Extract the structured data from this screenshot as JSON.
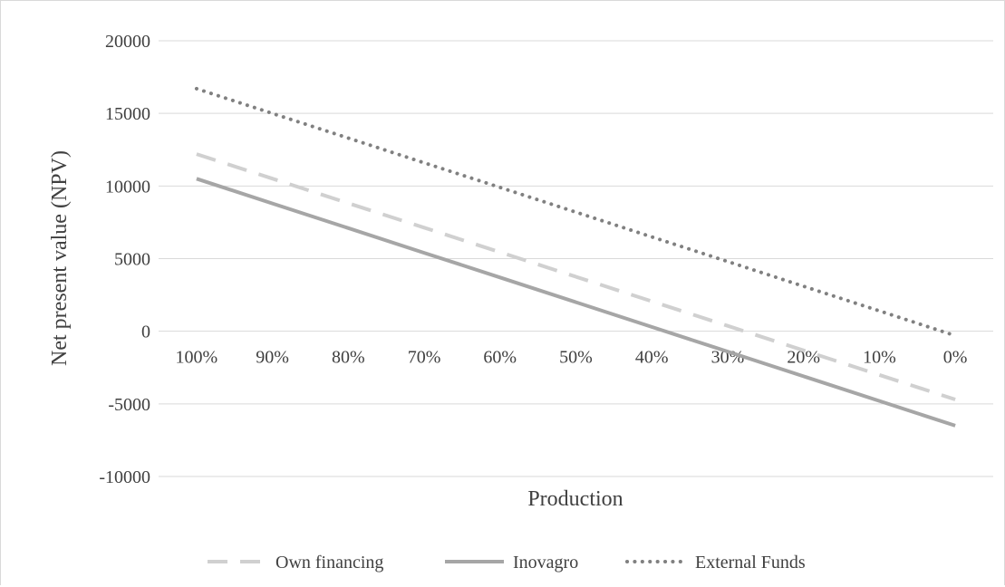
{
  "chart_data": {
    "type": "line",
    "title": "",
    "xlabel": "Production",
    "ylabel": "Net present value (NPV)",
    "categories": [
      "100%",
      "90%",
      "80%",
      "70%",
      "60%",
      "50%",
      "40%",
      "30%",
      "20%",
      "10%",
      "0%"
    ],
    "y_ticks": [
      20000,
      15000,
      10000,
      5000,
      0,
      -5000,
      -10000
    ],
    "ylim": [
      -10000,
      20000
    ],
    "grid": true,
    "legend_position": "bottom",
    "series": [
      {
        "name": "Own financing",
        "style": "dashed",
        "color": "#d0d0d0",
        "values": [
          12200,
          10510,
          8820,
          7130,
          5440,
          3750,
          2060,
          370,
          -1320,
          -3010,
          -4700
        ]
      },
      {
        "name": "Inovagro",
        "style": "solid",
        "color": "#a6a6a6",
        "values": [
          10500,
          8800,
          7100,
          5400,
          3700,
          2000,
          300,
          -1400,
          -3100,
          -4800,
          -6500
        ]
      },
      {
        "name": "External Funds",
        "style": "dotted",
        "color": "#808080",
        "values": [
          16700,
          15000,
          13300,
          11600,
          9900,
          8200,
          6500,
          4800,
          3100,
          1400,
          -300
        ]
      }
    ]
  }
}
